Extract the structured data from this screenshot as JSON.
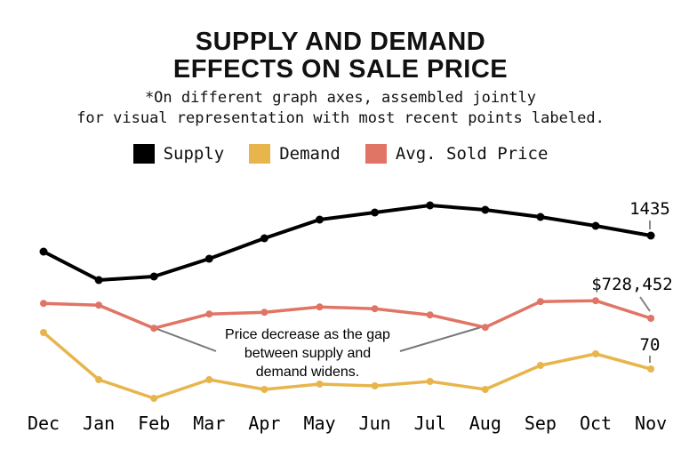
{
  "chart_data": {
    "type": "line",
    "title": "SUPPLY AND DEMAND EFFECTS ON SALE PRICE",
    "title_lines": [
      "SUPPLY AND DEMAND",
      "EFFECTS ON SALE PRICE"
    ],
    "subtitle_lines": [
      "*On different graph axes, assembled jointly",
      "for visual representation with most recent points labeled."
    ],
    "categories": [
      "Dec",
      "Jan",
      "Feb",
      "Mar",
      "Apr",
      "May",
      "Jun",
      "Jul",
      "Aug",
      "Sep",
      "Oct",
      "Nov"
    ],
    "series": [
      {
        "name": "Supply",
        "color": "#000000",
        "values": [
          1345,
          1185,
          1205,
          1305,
          1420,
          1525,
          1565,
          1605,
          1580,
          1540,
          1490,
          1435
        ],
        "last_label": "1435"
      },
      {
        "name": "Demand",
        "color": "#E8B54D",
        "values": [
          111,
          58,
          37,
          58,
          47,
          53,
          51,
          56,
          47,
          74,
          87,
          70
        ],
        "last_label": "70"
      },
      {
        "name": "Avg. Sold Price",
        "color": "#E07565",
        "values": [
          762000,
          758000,
          706000,
          738000,
          742000,
          754000,
          750000,
          736000,
          708000,
          766000,
          768000,
          728452
        ],
        "last_label": "$728,452"
      }
    ],
    "annotation": [
      "Price decrease as  the gap",
      "between supply and",
      "demand widens."
    ],
    "legend_position": "top",
    "grid": false,
    "y_axes_shown": false
  }
}
